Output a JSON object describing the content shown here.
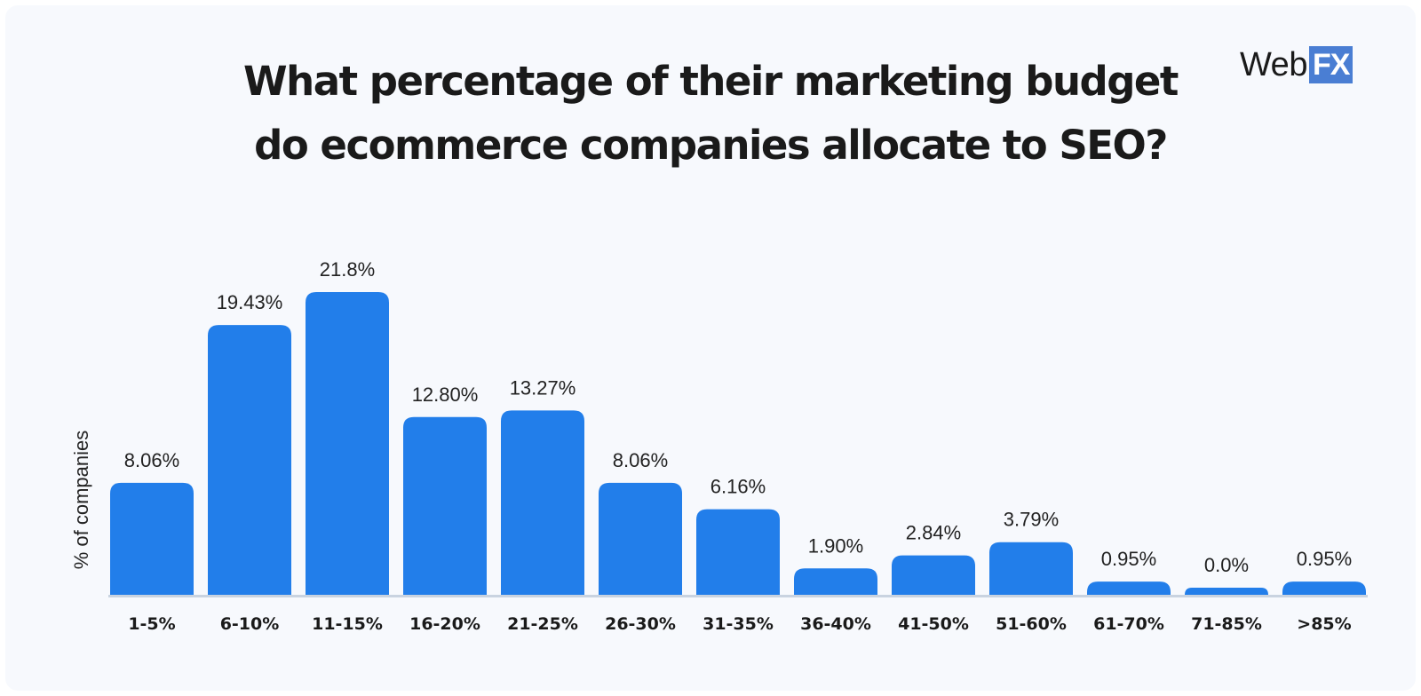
{
  "brand": {
    "logo_text": "Web",
    "logo_badge": "FX",
    "badge_color": "#4a7ed3"
  },
  "chart_data": {
    "type": "bar",
    "title_lines": [
      "What percentage of their marketing budget",
      "do ecommerce companies allocate to SEO?"
    ],
    "ylabel": "% of companies",
    "xlabel": "",
    "categories": [
      "1-5%",
      "6-10%",
      "11-15%",
      "16-20%",
      "21-25%",
      "26-30%",
      "31-35%",
      "36-40%",
      "41-50%",
      "51-60%",
      "61-70%",
      "71-85%",
      ">85%"
    ],
    "values": [
      8.06,
      19.43,
      21.8,
      12.8,
      13.27,
      8.06,
      6.16,
      1.9,
      2.84,
      3.79,
      0.95,
      0.0,
      0.95
    ],
    "value_labels": [
      "8.06%",
      "19.43%",
      "21.8%",
      "12.80%",
      "13.27%",
      "8.06%",
      "6.16%",
      "1.90%",
      "2.84%",
      "3.79%",
      "0.95%",
      "0.0%",
      "0.95%"
    ],
    "ylim": [
      0,
      21.8
    ],
    "grid": false,
    "legend": "none",
    "bar_color": "#227eea",
    "axis_color": "#c9d3e0"
  }
}
